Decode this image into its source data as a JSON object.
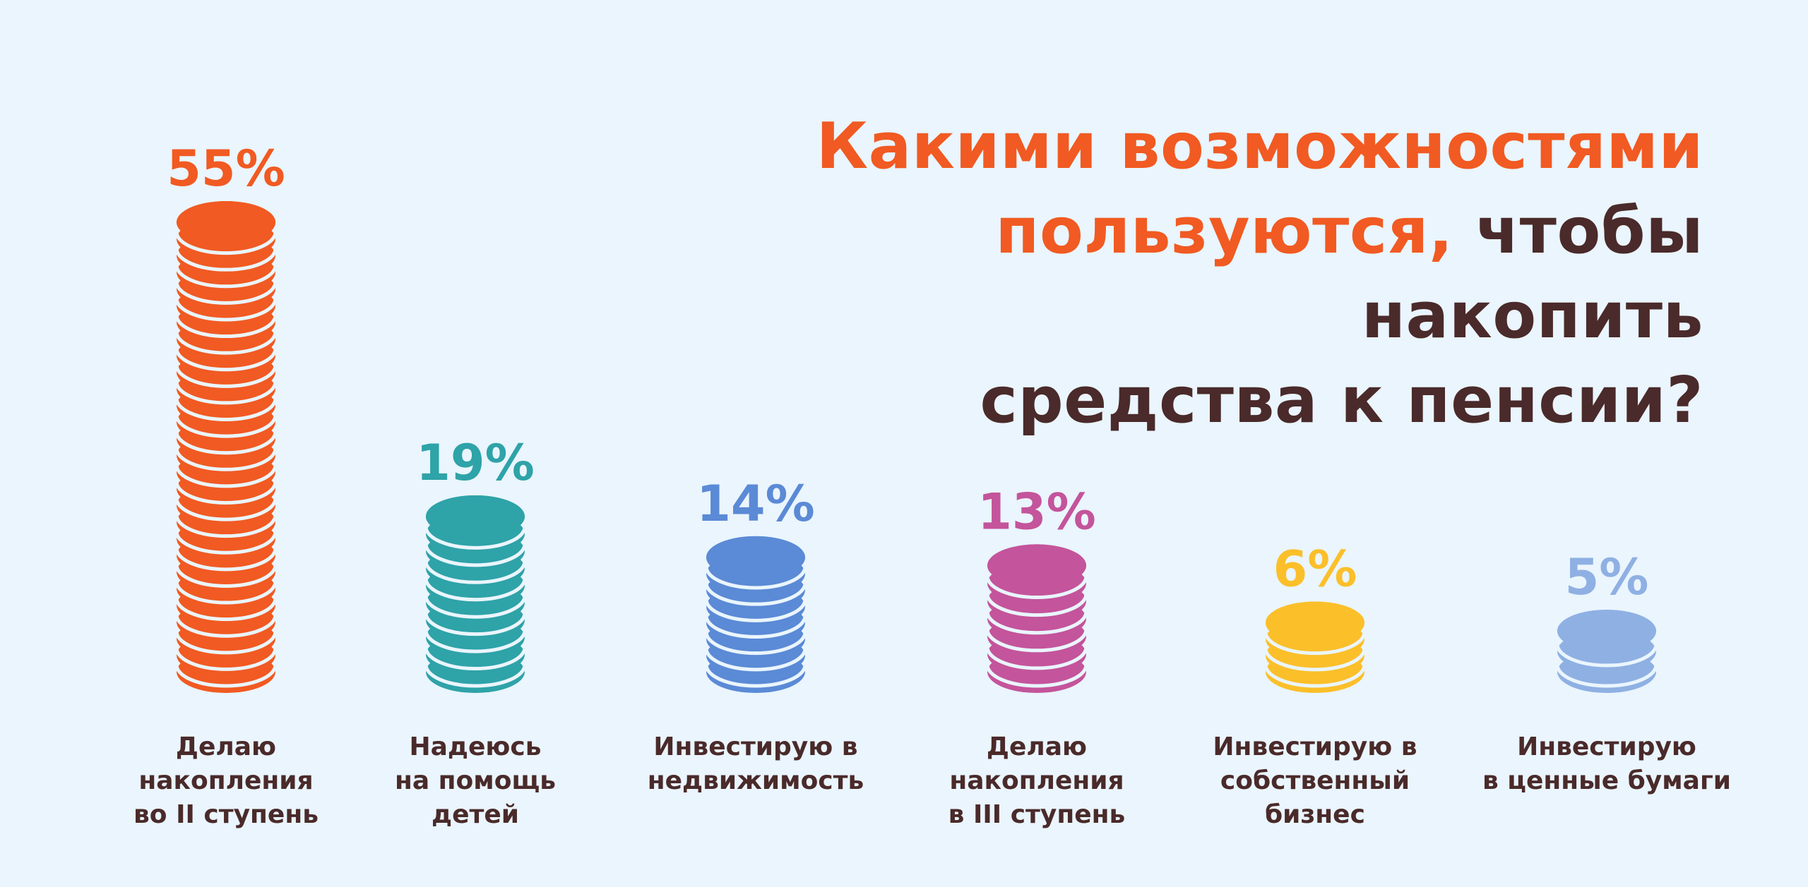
{
  "title": {
    "line1_highlight": "Какими возможностями",
    "line2_highlight": "пользуются,",
    "line2_rest": " чтобы накопить",
    "line3": "средства к пенсии?"
  },
  "colors": {
    "background": "#eaf5fd",
    "title_accent": "#f15a22",
    "title_dark": "#4a2a2a",
    "label_text": "#4a2a2a"
  },
  "chart_data": {
    "type": "bar",
    "style": "coin-stacks",
    "title": "Какими возможностями пользуются, чтобы накопить средства к пенсии?",
    "unit": "%",
    "ylim": [
      0,
      55
    ],
    "categories": [
      [
        "Делаю",
        "накопления",
        "во II ступень"
      ],
      [
        "Надеюсь",
        "на помощь",
        "детей"
      ],
      [
        "Инвестирую в",
        "недвижимость"
      ],
      [
        "Делаю",
        "накопления",
        "в III ступень"
      ],
      [
        "Инвестирую в",
        "собственный",
        "бизнес"
      ],
      [
        "Инвестирую",
        "в ценные бумаги"
      ]
    ],
    "values": [
      55,
      19,
      14,
      13,
      6,
      5
    ],
    "value_labels": [
      "55%",
      "19%",
      "14%",
      "13%",
      "6%",
      "5%"
    ],
    "colors": [
      "#f15a22",
      "#2ea3a8",
      "#5b8ad6",
      "#c4549b",
      "#fbbf2a",
      "#8fb0e3"
    ]
  }
}
